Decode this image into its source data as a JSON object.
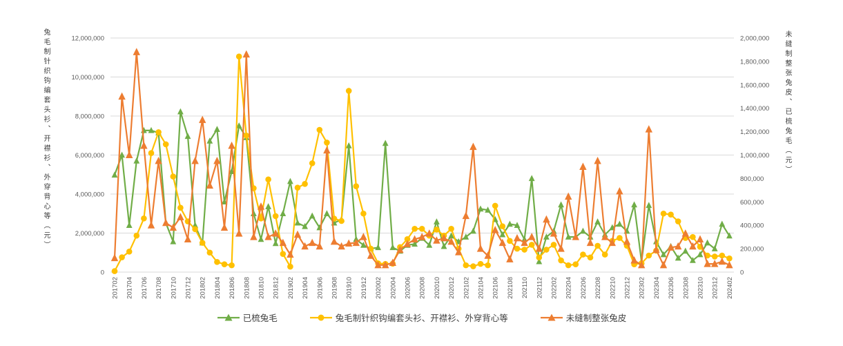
{
  "chart": {
    "background": "#ffffff",
    "gridline_color": "#d9d9d9",
    "tick_text_color": "#595959",
    "legend_text_color": "#404040"
  },
  "chart_data": {
    "type": "line",
    "left_axis": {
      "title": "兔毛制针织钩编套头衫、开襟衫、外穿背心等（元）",
      "min": 0,
      "max": 12000000,
      "tick_step": 2000000,
      "tick_labels": [
        "0",
        "2,000,000",
        "4,000,000",
        "6,000,000",
        "8,000,000",
        "10,000,000",
        "12,000,000"
      ]
    },
    "right_axis": {
      "title": "未缝制整张兔皮、已梳兔毛（元）",
      "min": 0,
      "max": 2000000,
      "tick_step": 200000,
      "tick_labels": [
        "0",
        "200,000",
        "400,000",
        "600,000",
        "800,000",
        "1,000,000",
        "1,200,000",
        "1,400,000",
        "1,600,000",
        "1,800,000",
        "2,000,000"
      ]
    },
    "x_axis": {
      "label_every": 2,
      "labels": [
        "201702",
        "201703",
        "201704",
        "201705",
        "201706",
        "201707",
        "201708",
        "201709",
        "201710",
        "201711",
        "201712",
        "201801",
        "201802",
        "201803",
        "201804",
        "201805",
        "201806",
        "201807",
        "201808",
        "201809",
        "201810",
        "201811",
        "201812",
        "201901",
        "201902",
        "201903",
        "201904",
        "201905",
        "201906",
        "201907",
        "201908",
        "201909",
        "201910",
        "201911",
        "201912",
        "202001",
        "202002",
        "202003",
        "202004",
        "202005",
        "202006",
        "202007",
        "202008",
        "202009",
        "202010",
        "202011",
        "202012",
        "202101",
        "202102",
        "202103",
        "202104",
        "202105",
        "202106",
        "202107",
        "202108",
        "202109",
        "202110",
        "202111",
        "202112",
        "202201",
        "202202",
        "202203",
        "202204",
        "202205",
        "202206",
        "202207",
        "202208",
        "202209",
        "202210",
        "202211",
        "202212",
        "202301",
        "202302",
        "202303",
        "202304",
        "202305",
        "202306",
        "202307",
        "202308",
        "202309",
        "202310",
        "202311",
        "202312",
        "202401",
        "202402"
      ]
    },
    "series": [
      {
        "id": "green",
        "name": "已梳兔毛",
        "axis": "right",
        "color": "#70ad47",
        "marker": "triangle",
        "values": [
          830000,
          1000000,
          400000,
          950000,
          1210000,
          1210000,
          1190000,
          420000,
          260000,
          1370000,
          1160000,
          400000,
          250000,
          1120000,
          1220000,
          600000,
          860000,
          1250000,
          1150000,
          500000,
          280000,
          560000,
          245000,
          500000,
          775000,
          420000,
          390000,
          480000,
          380000,
          500000,
          420000,
          450000,
          1080000,
          280000,
          230000,
          200000,
          210000,
          1100000,
          210000,
          180000,
          230000,
          240000,
          290000,
          230000,
          430000,
          220000,
          310000,
          260000,
          300000,
          350000,
          540000,
          530000,
          450000,
          320000,
          410000,
          400000,
          280000,
          800000,
          90000,
          300000,
          350000,
          575000,
          300000,
          300000,
          350000,
          300000,
          430000,
          320000,
          380000,
          410000,
          350000,
          575000,
          90000,
          570000,
          260000,
          150000,
          220000,
          120000,
          180000,
          100000,
          150000,
          250000,
          200000,
          410000,
          310000
        ]
      },
      {
        "id": "yellow",
        "name": "兔毛制针织钩编套头衫、开襟衫、外穿背心等",
        "axis": "left",
        "color": "#ffc000",
        "marker": "circle",
        "values": [
          50000,
          760000,
          1050000,
          1870000,
          2750000,
          6100000,
          7170000,
          6550000,
          4900000,
          3300000,
          2600000,
          2200000,
          1500000,
          1000000,
          520000,
          400000,
          350000,
          11050000,
          7000000,
          4300000,
          2750000,
          4750000,
          2870000,
          930000,
          280000,
          4330000,
          4520000,
          5580000,
          7290000,
          6640000,
          2740000,
          2620000,
          9290000,
          4400000,
          3000000,
          1200000,
          450000,
          420000,
          430000,
          1280000,
          1690000,
          2220000,
          2220000,
          1870000,
          2180000,
          1870000,
          2220000,
          1200000,
          350000,
          300000,
          420000,
          350000,
          3400000,
          2350000,
          1600000,
          1200000,
          1150000,
          1400000,
          750000,
          1150000,
          1400000,
          600000,
          350000,
          400000,
          900000,
          750000,
          1350000,
          900000,
          1600000,
          1750000,
          1350000,
          400000,
          450000,
          850000,
          1100000,
          3000000,
          2950000,
          2600000,
          1750000,
          1800000,
          1300000,
          850000,
          800000,
          850000,
          700000
        ]
      },
      {
        "id": "orange",
        "name": "未缝制整张兔皮",
        "axis": "right",
        "color": "#ed7d31",
        "marker": "triangle",
        "values": [
          120000,
          1500000,
          1000000,
          1880000,
          1080000,
          400000,
          950000,
          420000,
          380000,
          470000,
          280000,
          950000,
          1300000,
          740000,
          950000,
          380000,
          1080000,
          330000,
          1860000,
          300000,
          560000,
          300000,
          330000,
          250000,
          150000,
          320000,
          220000,
          250000,
          220000,
          1040000,
          260000,
          220000,
          245000,
          250000,
          300000,
          140000,
          60000,
          60000,
          80000,
          190000,
          240000,
          280000,
          300000,
          330000,
          270000,
          290000,
          260000,
          170000,
          480000,
          1070000,
          200000,
          140000,
          360000,
          250000,
          110000,
          290000,
          250000,
          300000,
          200000,
          450000,
          330000,
          200000,
          645000,
          300000,
          900000,
          250000,
          950000,
          300000,
          250000,
          690000,
          260000,
          100000,
          60000,
          1220000,
          190000,
          60000,
          210000,
          220000,
          330000,
          220000,
          280000,
          70000,
          70000,
          90000,
          60000
        ]
      }
    ]
  }
}
